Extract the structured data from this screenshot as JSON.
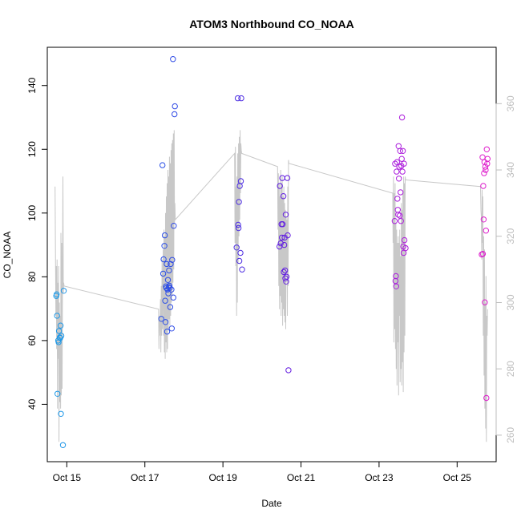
{
  "chart_data": {
    "type": "scatter",
    "title": "ATOM3 Northbound CO_NOAA",
    "xlabel": "Date",
    "ylabel": "CO_NOAA",
    "xlim": [
      14.5,
      26.0
    ],
    "ylim": [
      22,
      152
    ],
    "y2lim": [
      252,
      377
    ],
    "x_ticks": [
      {
        "value": 15,
        "label": "Oct 15"
      },
      {
        "value": 17,
        "label": "Oct 17"
      },
      {
        "value": 19,
        "label": "Oct 19"
      },
      {
        "value": 21,
        "label": "Oct 21"
      },
      {
        "value": 23,
        "label": "Oct 23"
      },
      {
        "value": 25,
        "label": "Oct 25"
      }
    ],
    "y_ticks": [
      40,
      60,
      80,
      100,
      120,
      140
    ],
    "y2_ticks": [
      260,
      280,
      300,
      320,
      340,
      360
    ],
    "colors": {
      "trace": "#c8c8c8",
      "right_axis": "#bdbdbd",
      "gradient": [
        "#1e9be8",
        "#2b4fe6",
        "#5a1ee0",
        "#a01ee0",
        "#e01ecc"
      ]
    },
    "points": [
      {
        "x": 14.73,
        "y": 74.0
      },
      {
        "x": 14.74,
        "y": 74.5
      },
      {
        "x": 14.75,
        "y": 67.8
      },
      {
        "x": 14.76,
        "y": 43.3
      },
      {
        "x": 14.78,
        "y": 60.0
      },
      {
        "x": 14.79,
        "y": 59.5
      },
      {
        "x": 14.8,
        "y": 63.0
      },
      {
        "x": 14.82,
        "y": 61.0
      },
      {
        "x": 14.83,
        "y": 60.8
      },
      {
        "x": 14.84,
        "y": 64.7
      },
      {
        "x": 14.85,
        "y": 37.0
      },
      {
        "x": 14.86,
        "y": 61.5
      },
      {
        "x": 14.9,
        "y": 27.2
      },
      {
        "x": 14.92,
        "y": 75.6
      },
      {
        "x": 17.42,
        "y": 66.8
      },
      {
        "x": 17.45,
        "y": 115.0
      },
      {
        "x": 17.47,
        "y": 81.0
      },
      {
        "x": 17.48,
        "y": 85.5
      },
      {
        "x": 17.5,
        "y": 89.7
      },
      {
        "x": 17.51,
        "y": 93.0
      },
      {
        "x": 17.52,
        "y": 72.5
      },
      {
        "x": 17.53,
        "y": 65.8
      },
      {
        "x": 17.54,
        "y": 77.0
      },
      {
        "x": 17.55,
        "y": 76.5
      },
      {
        "x": 17.56,
        "y": 84.0
      },
      {
        "x": 17.57,
        "y": 62.8
      },
      {
        "x": 17.58,
        "y": 76.0
      },
      {
        "x": 17.59,
        "y": 79.0
      },
      {
        "x": 17.6,
        "y": 74.8
      },
      {
        "x": 17.61,
        "y": 76.8
      },
      {
        "x": 17.62,
        "y": 82.0
      },
      {
        "x": 17.63,
        "y": 77.2
      },
      {
        "x": 17.64,
        "y": 76.5
      },
      {
        "x": 17.65,
        "y": 70.5
      },
      {
        "x": 17.66,
        "y": 84.0
      },
      {
        "x": 17.68,
        "y": 76.0
      },
      {
        "x": 17.69,
        "y": 63.8
      },
      {
        "x": 17.7,
        "y": 85.3
      },
      {
        "x": 17.72,
        "y": 148.3
      },
      {
        "x": 17.73,
        "y": 73.5
      },
      {
        "x": 17.74,
        "y": 96.0
      },
      {
        "x": 17.76,
        "y": 131.0
      },
      {
        "x": 17.77,
        "y": 133.5
      },
      {
        "x": 19.35,
        "y": 89.2
      },
      {
        "x": 19.38,
        "y": 136.0
      },
      {
        "x": 19.39,
        "y": 96.3
      },
      {
        "x": 19.4,
        "y": 95.3
      },
      {
        "x": 19.41,
        "y": 103.5
      },
      {
        "x": 19.42,
        "y": 85.0
      },
      {
        "x": 19.43,
        "y": 108.5
      },
      {
        "x": 19.45,
        "y": 87.5
      },
      {
        "x": 19.46,
        "y": 110.0
      },
      {
        "x": 19.47,
        "y": 136.0
      },
      {
        "x": 19.49,
        "y": 82.3
      },
      {
        "x": 20.45,
        "y": 89.5
      },
      {
        "x": 20.46,
        "y": 108.5
      },
      {
        "x": 20.48,
        "y": 90.5
      },
      {
        "x": 20.5,
        "y": 96.5
      },
      {
        "x": 20.51,
        "y": 92.3
      },
      {
        "x": 20.52,
        "y": 111.0
      },
      {
        "x": 20.53,
        "y": 96.5
      },
      {
        "x": 20.55,
        "y": 105.3
      },
      {
        "x": 20.56,
        "y": 81.5
      },
      {
        "x": 20.57,
        "y": 90.0
      },
      {
        "x": 20.58,
        "y": 92.3
      },
      {
        "x": 20.59,
        "y": 82.0
      },
      {
        "x": 20.6,
        "y": 79.5
      },
      {
        "x": 20.61,
        "y": 99.5
      },
      {
        "x": 20.62,
        "y": 78.5
      },
      {
        "x": 20.63,
        "y": 80.0
      },
      {
        "x": 20.65,
        "y": 111.0
      },
      {
        "x": 20.66,
        "y": 93.0
      },
      {
        "x": 20.68,
        "y": 50.7
      },
      {
        "x": 23.4,
        "y": 97.5
      },
      {
        "x": 23.41,
        "y": 115.5
      },
      {
        "x": 23.42,
        "y": 78.7
      },
      {
        "x": 23.43,
        "y": 80.2
      },
      {
        "x": 23.44,
        "y": 77.0
      },
      {
        "x": 23.45,
        "y": 113.0
      },
      {
        "x": 23.46,
        "y": 116.0
      },
      {
        "x": 23.47,
        "y": 104.5
      },
      {
        "x": 23.48,
        "y": 101.0
      },
      {
        "x": 23.49,
        "y": 99.5
      },
      {
        "x": 23.5,
        "y": 121.0
      },
      {
        "x": 23.51,
        "y": 110.8
      },
      {
        "x": 23.52,
        "y": 114.5
      },
      {
        "x": 23.53,
        "y": 99.2
      },
      {
        "x": 23.54,
        "y": 119.5
      },
      {
        "x": 23.55,
        "y": 106.5
      },
      {
        "x": 23.56,
        "y": 97.5
      },
      {
        "x": 23.57,
        "y": 114.8
      },
      {
        "x": 23.58,
        "y": 117.0
      },
      {
        "x": 23.59,
        "y": 130.0
      },
      {
        "x": 23.6,
        "y": 113.0
      },
      {
        "x": 23.61,
        "y": 119.5
      },
      {
        "x": 23.62,
        "y": 89.5
      },
      {
        "x": 23.63,
        "y": 87.5
      },
      {
        "x": 23.64,
        "y": 115.5
      },
      {
        "x": 23.65,
        "y": 91.5
      },
      {
        "x": 23.68,
        "y": 89.0
      },
      {
        "x": 25.63,
        "y": 87.0
      },
      {
        "x": 25.65,
        "y": 117.5
      },
      {
        "x": 25.66,
        "y": 87.2
      },
      {
        "x": 25.67,
        "y": 108.5
      },
      {
        "x": 25.68,
        "y": 98.0
      },
      {
        "x": 25.69,
        "y": 112.5
      },
      {
        "x": 25.7,
        "y": 116.0
      },
      {
        "x": 25.71,
        "y": 72.0
      },
      {
        "x": 25.72,
        "y": 114.5
      },
      {
        "x": 25.73,
        "y": 113.5
      },
      {
        "x": 25.74,
        "y": 94.5
      },
      {
        "x": 25.75,
        "y": 42.0
      },
      {
        "x": 25.76,
        "y": 120.0
      },
      {
        "x": 25.77,
        "y": 115.5
      },
      {
        "x": 25.78,
        "y": 117.0
      }
    ],
    "trace": [
      [
        14.7,
        335
      ],
      [
        14.72,
        296
      ],
      [
        14.73,
        311
      ],
      [
        14.74,
        286
      ],
      [
        14.75,
        313
      ],
      [
        14.76,
        268
      ],
      [
        14.77,
        306
      ],
      [
        14.78,
        283
      ],
      [
        14.79,
        311
      ],
      [
        14.8,
        258
      ],
      [
        14.81,
        300
      ],
      [
        14.82,
        270
      ],
      [
        14.83,
        296
      ],
      [
        14.84,
        268
      ],
      [
        14.85,
        321
      ],
      [
        14.86,
        272
      ],
      [
        14.87,
        318
      ],
      [
        14.88,
        274
      ],
      [
        14.89,
        309
      ],
      [
        14.9,
        338
      ],
      [
        14.91,
        303
      ],
      [
        14.92,
        306
      ],
      [
        14.93,
        305
      ],
      [
        17.35,
        298
      ],
      [
        17.36,
        286
      ],
      [
        17.37,
        296
      ],
      [
        17.38,
        290
      ],
      [
        17.4,
        301
      ],
      [
        17.41,
        285
      ],
      [
        17.42,
        305
      ],
      [
        17.43,
        290
      ],
      [
        17.44,
        313
      ],
      [
        17.45,
        292
      ],
      [
        17.46,
        302
      ],
      [
        17.47,
        316
      ],
      [
        17.48,
        290
      ],
      [
        17.49,
        322
      ],
      [
        17.5,
        285
      ],
      [
        17.51,
        320
      ],
      [
        17.52,
        283
      ],
      [
        17.53,
        327
      ],
      [
        17.54,
        288
      ],
      [
        17.55,
        332
      ],
      [
        17.56,
        285
      ],
      [
        17.57,
        336
      ],
      [
        17.58,
        286
      ],
      [
        17.59,
        340
      ],
      [
        17.6,
        292
      ],
      [
        17.61,
        338
      ],
      [
        17.62,
        295
      ],
      [
        17.63,
        344
      ],
      [
        17.64,
        293
      ],
      [
        17.65,
        342
      ],
      [
        17.66,
        296
      ],
      [
        17.67,
        346
      ],
      [
        17.68,
        300
      ],
      [
        17.69,
        348
      ],
      [
        17.7,
        302
      ],
      [
        17.71,
        349
      ],
      [
        17.72,
        306
      ],
      [
        17.73,
        351
      ],
      [
        17.74,
        310
      ],
      [
        17.75,
        352
      ],
      [
        17.76,
        324
      ],
      [
        17.77,
        330
      ],
      [
        17.78,
        325
      ],
      [
        19.3,
        345
      ],
      [
        19.31,
        318
      ],
      [
        19.32,
        347
      ],
      [
        19.33,
        311
      ],
      [
        19.34,
        335
      ],
      [
        19.35,
        296
      ],
      [
        19.36,
        338
      ],
      [
        19.37,
        300
      ],
      [
        19.38,
        345
      ],
      [
        19.39,
        312
      ],
      [
        19.4,
        348
      ],
      [
        19.41,
        320
      ],
      [
        19.42,
        350
      ],
      [
        19.43,
        325
      ],
      [
        19.44,
        352
      ],
      [
        19.45,
        333
      ],
      [
        19.46,
        348
      ],
      [
        19.47,
        346
      ],
      [
        19.48,
        345
      ],
      [
        20.4,
        341
      ],
      [
        20.41,
        322
      ],
      [
        20.42,
        339
      ],
      [
        20.43,
        305
      ],
      [
        20.44,
        336
      ],
      [
        20.45,
        298
      ],
      [
        20.46,
        332
      ],
      [
        20.47,
        302
      ],
      [
        20.48,
        340
      ],
      [
        20.49,
        296
      ],
      [
        20.5,
        336
      ],
      [
        20.51,
        300
      ],
      [
        20.52,
        338
      ],
      [
        20.53,
        293
      ],
      [
        20.54,
        332
      ],
      [
        20.55,
        298
      ],
      [
        20.56,
        335
      ],
      [
        20.57,
        296
      ],
      [
        20.58,
        330
      ],
      [
        20.59,
        294
      ],
      [
        20.6,
        328
      ],
      [
        20.61,
        292
      ],
      [
        20.62,
        326
      ],
      [
        20.63,
        310
      ],
      [
        20.64,
        325
      ],
      [
        20.65,
        296
      ],
      [
        20.66,
        335
      ],
      [
        20.67,
        305
      ],
      [
        20.68,
        343
      ],
      [
        20.69,
        342
      ],
      [
        23.35,
        333
      ],
      [
        23.36,
        318
      ],
      [
        23.37,
        338
      ],
      [
        23.38,
        288
      ],
      [
        23.39,
        333
      ],
      [
        23.4,
        292
      ],
      [
        23.41,
        336
      ],
      [
        23.42,
        286
      ],
      [
        23.43,
        324
      ],
      [
        23.44,
        280
      ],
      [
        23.45,
        322
      ],
      [
        23.46,
        275
      ],
      [
        23.47,
        318
      ],
      [
        23.48,
        288
      ],
      [
        23.49,
        320
      ],
      [
        23.5,
        272
      ],
      [
        23.51,
        318
      ],
      [
        23.52,
        296
      ],
      [
        23.53,
        322
      ],
      [
        23.54,
        276
      ],
      [
        23.55,
        314
      ],
      [
        23.56,
        280
      ],
      [
        23.57,
        330
      ],
      [
        23.58,
        275
      ],
      [
        23.59,
        328
      ],
      [
        23.6,
        282
      ],
      [
        23.61,
        333
      ],
      [
        23.62,
        273
      ],
      [
        23.63,
        338
      ],
      [
        23.64,
        285
      ],
      [
        23.65,
        336
      ],
      [
        23.66,
        290
      ],
      [
        23.67,
        338
      ],
      [
        23.68,
        337
      ],
      [
        25.6,
        335
      ],
      [
        25.61,
        328
      ],
      [
        25.62,
        326
      ],
      [
        25.63,
        313
      ],
      [
        25.64,
        334
      ],
      [
        25.65,
        318
      ],
      [
        25.66,
        332
      ],
      [
        25.67,
        290
      ],
      [
        25.68,
        320
      ],
      [
        25.69,
        278
      ],
      [
        25.7,
        316
      ],
      [
        25.71,
        268
      ],
      [
        25.72,
        300
      ],
      [
        25.73,
        262
      ],
      [
        25.74,
        308
      ],
      [
        25.75,
        258
      ],
      [
        25.76,
        296
      ],
      [
        25.77,
        290
      ],
      [
        25.78,
        298
      ]
    ]
  }
}
